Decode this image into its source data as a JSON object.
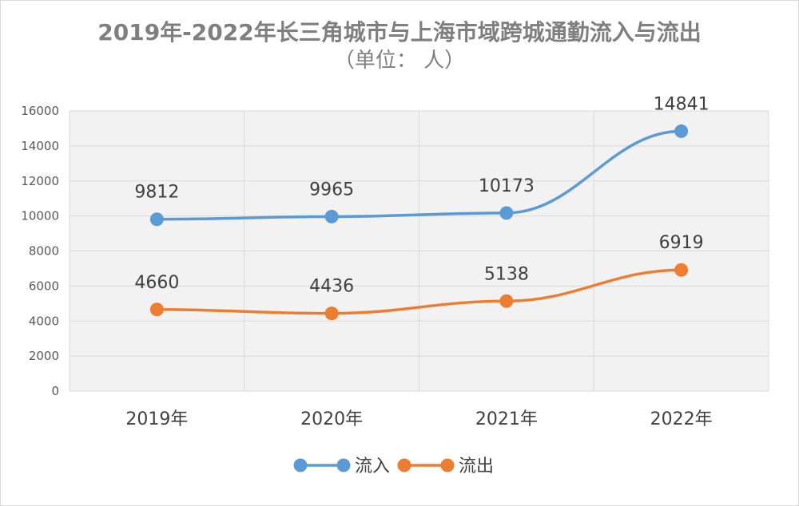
{
  "chart_data": {
    "type": "line",
    "title": "2019年-2022年长三角城市与上海市域跨城通勤流入与流出",
    "subtitle": "（单位： 人）",
    "categories": [
      "2019年",
      "2020年",
      "2021年",
      "2022年"
    ],
    "series": [
      {
        "name": "流入",
        "color": "#5b9bd5",
        "values": [
          9812,
          9965,
          10173,
          14841
        ]
      },
      {
        "name": "流出",
        "color": "#ed7d31",
        "values": [
          4660,
          4436,
          5138,
          6919
        ]
      }
    ],
    "ylim": [
      0,
      16000
    ],
    "yticks": [
      0,
      2000,
      4000,
      6000,
      8000,
      10000,
      12000,
      14000,
      16000
    ],
    "grid": true,
    "legend_position": "bottom",
    "plot_background": "#f2f2f2",
    "grid_color": "#d9d9d9"
  }
}
